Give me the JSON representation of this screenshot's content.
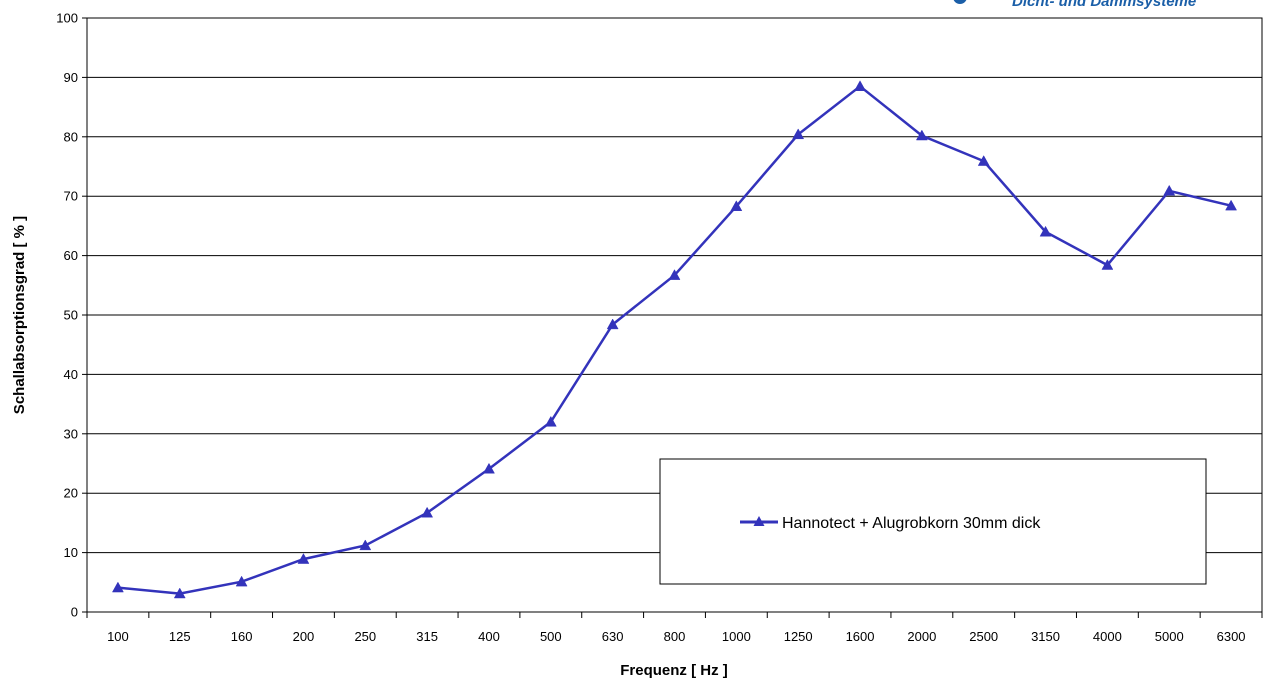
{
  "brand": {
    "text": "Dicht- und Dämmsysteme",
    "color": "#1b5fa8"
  },
  "chart_data": {
    "type": "line",
    "xlabel": "Frequenz [ Hz ]",
    "ylabel": "Schallabsorptionsgrad [ % ]",
    "categories": [
      "100",
      "125",
      "160",
      "200",
      "250",
      "315",
      "400",
      "500",
      "630",
      "800",
      "1000",
      "1250",
      "1600",
      "2000",
      "2500",
      "3150",
      "4000",
      "5000",
      "6300"
    ],
    "series": [
      {
        "name": "Hannotect + Alugrobkorn  30mm dick",
        "color": "#3333bb",
        "marker": "triangle",
        "values": [
          4.1,
          3.1,
          5.1,
          8.9,
          11.2,
          16.7,
          24.1,
          32.0,
          48.4,
          56.7,
          68.3,
          80.4,
          88.5,
          80.2,
          75.9,
          64.0,
          58.4,
          70.9,
          68.4
        ]
      }
    ],
    "ylim": [
      0,
      100
    ],
    "yticks": [
      0,
      10,
      20,
      30,
      40,
      50,
      60,
      70,
      80,
      90,
      100
    ],
    "grid": "horizontal",
    "legend_position": "bottom-right"
  }
}
